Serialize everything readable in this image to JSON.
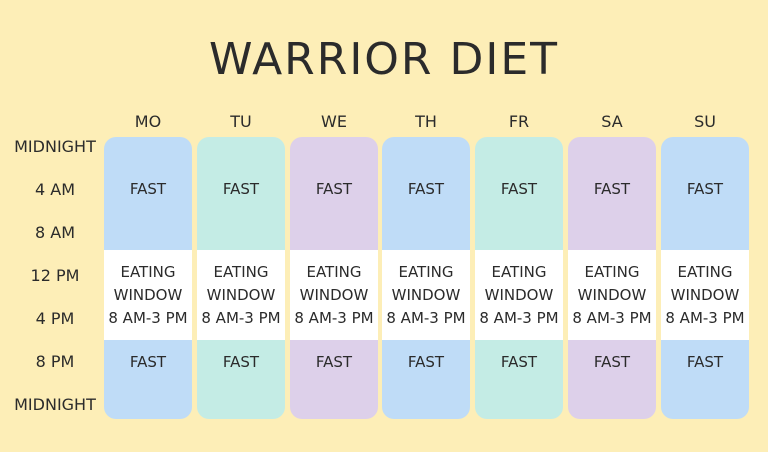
{
  "title": "WARRIOR DIET",
  "time_labels": [
    "MIDNIGHT",
    "4 AM",
    "8 AM",
    "12 PM",
    "4 PM",
    "8 PM",
    "MIDNIGHT"
  ],
  "days": [
    {
      "name": "MO",
      "color": "#bfdcf7"
    },
    {
      "name": "TU",
      "color": "#c4ece5"
    },
    {
      "name": "WE",
      "color": "#ddd0ea"
    },
    {
      "name": "TH",
      "color": "#bfdcf7"
    },
    {
      "name": "FR",
      "color": "#c4ece5"
    },
    {
      "name": "SA",
      "color": "#ddd0ea"
    },
    {
      "name": "SU",
      "color": "#bfdcf7"
    }
  ],
  "fast_label": "FAST",
  "eating_window": {
    "line1": "EATING",
    "line2": "WINDOW",
    "line3": "8 AM-3 PM"
  },
  "colors": {
    "background": "#fdeeb7",
    "eating_window": "#ffffff"
  }
}
